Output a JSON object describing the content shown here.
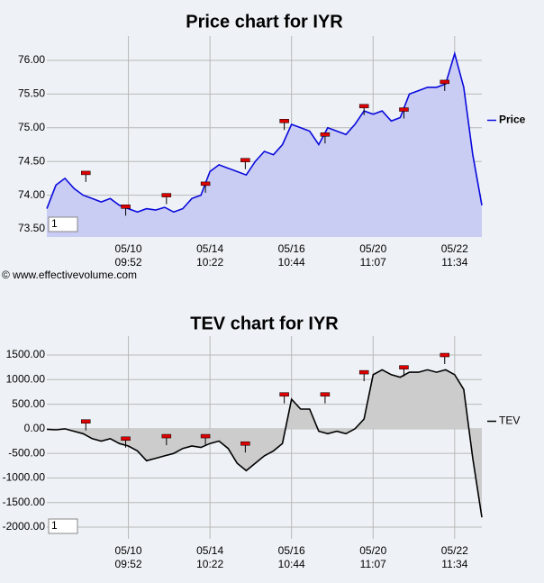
{
  "watermark": "© www.effectivevolume.com",
  "chart_data": [
    {
      "type": "area",
      "title": "Price chart for IYR",
      "input_value": "1",
      "series": [
        {
          "name": "Price",
          "color": "#0a0adc",
          "fill": "#c9ccf3",
          "values": [
            73.8,
            74.15,
            74.25,
            74.1,
            74.0,
            73.95,
            73.9,
            73.95,
            73.85,
            73.8,
            73.75,
            73.8,
            73.78,
            73.82,
            73.75,
            73.8,
            73.95,
            74.0,
            74.35,
            74.45,
            74.4,
            74.35,
            74.3,
            74.5,
            74.65,
            74.6,
            74.75,
            75.05,
            75.0,
            74.95,
            74.75,
            75.0,
            74.95,
            74.9,
            75.05,
            75.25,
            75.2,
            75.25,
            75.1,
            75.15,
            75.5,
            75.55,
            75.6,
            75.6,
            75.65,
            76.1,
            75.6,
            74.6,
            73.85
          ]
        }
      ],
      "markers": {
        "x": [
          4.3,
          8.7,
          13.2,
          17.5,
          21.9,
          26.2,
          30.7,
          35.0,
          39.4,
          43.9
        ],
        "y": [
          74.33,
          73.83,
          74.0,
          74.17,
          74.52,
          75.1,
          74.9,
          75.32,
          75.27,
          75.68
        ],
        "color": "#dd0000"
      },
      "xlim": [
        0,
        48
      ],
      "xticks": [
        {
          "value": 9,
          "label": "05/10 09:52"
        },
        {
          "value": 18,
          "label": "05/14 10:22"
        },
        {
          "value": 27,
          "label": "05/16 10:44"
        },
        {
          "value": 36,
          "label": "05/20 11:07"
        },
        {
          "value": 45,
          "label": "05/22 11:34"
        }
      ],
      "ylim": [
        73.38,
        76.36
      ],
      "yticks": [
        {
          "value": 73.5,
          "label": "73.50"
        },
        {
          "value": 74,
          "label": "74.00"
        },
        {
          "value": 74.5,
          "label": "74.50"
        },
        {
          "value": 75,
          "label": "75.00"
        },
        {
          "value": 75.5,
          "label": "75.50"
        },
        {
          "value": 76,
          "label": "76.00"
        }
      ],
      "grid": true
    },
    {
      "type": "area",
      "title": "TEV chart for IYR",
      "input_value": "1",
      "series": [
        {
          "name": "TEV",
          "color": "#000000",
          "fill": "#cccccc",
          "values": [
            -10,
            -20,
            0,
            -50,
            -100,
            -200,
            -250,
            -200,
            -300,
            -350,
            -450,
            -650,
            -600,
            -550,
            -500,
            -400,
            -350,
            -380,
            -300,
            -250,
            -400,
            -700,
            -850,
            -700,
            -550,
            -450,
            -300,
            600,
            400,
            400,
            -50,
            -100,
            -50,
            -100,
            0,
            200,
            1100,
            1200,
            1100,
            1050,
            1150,
            1150,
            1200,
            1150,
            1200,
            1100,
            800,
            -600,
            -1800
          ]
        }
      ],
      "markers": {
        "x": [
          4.3,
          8.7,
          13.2,
          17.5,
          21.9,
          26.2,
          30.7,
          35.0,
          39.4,
          43.9
        ],
        "y": [
          150,
          -200,
          -150,
          -150,
          -300,
          700,
          700,
          1150,
          1250,
          1500
        ],
        "color": "#dd0000"
      },
      "xlim": [
        0,
        48
      ],
      "xticks": [
        {
          "value": 9,
          "label": "05/10 09:52"
        },
        {
          "value": 18,
          "label": "05/14 10:22"
        },
        {
          "value": 27,
          "label": "05/16 10:44"
        },
        {
          "value": 36,
          "label": "05/20 11:07"
        },
        {
          "value": 45,
          "label": "05/22 11:34"
        }
      ],
      "ylim": [
        -2238,
        1885
      ],
      "yticks": [
        {
          "value": -2000,
          "label": "-2000.00"
        },
        {
          "value": -1500,
          "label": "-1500.00"
        },
        {
          "value": -1000,
          "label": "-1000.00"
        },
        {
          "value": -500,
          "label": "-500.00"
        },
        {
          "value": 0,
          "label": "0.00"
        },
        {
          "value": 500,
          "label": "500.00"
        },
        {
          "value": 1000,
          "label": "1000.00"
        },
        {
          "value": 1500,
          "label": "1500.00"
        }
      ],
      "grid": true
    }
  ]
}
